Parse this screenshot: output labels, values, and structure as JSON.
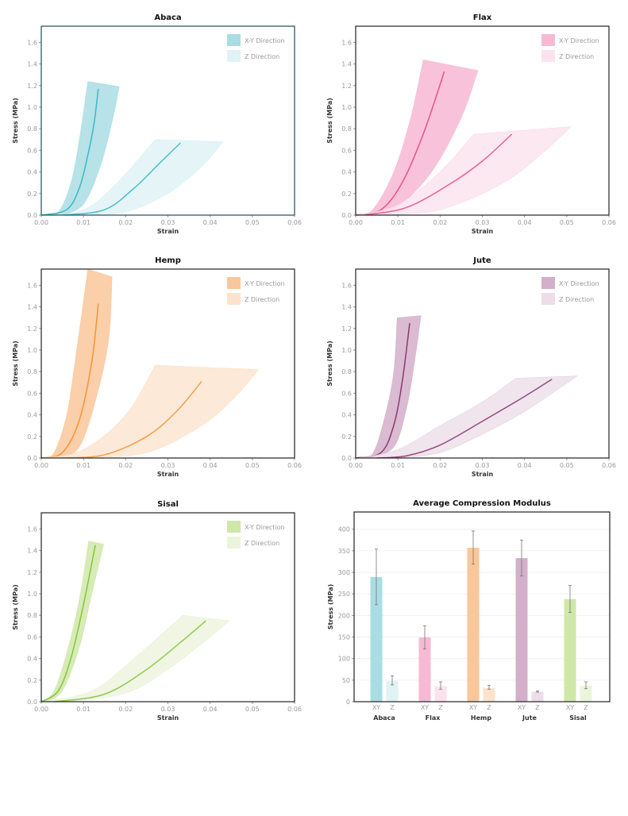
{
  "chart_data": [
    {
      "type": "area",
      "title": "Abaca",
      "xlabel": "Strain",
      "ylabel": "Stress (MPa)",
      "xlim": [
        0,
        0.06
      ],
      "ylim": [
        0,
        1.75
      ],
      "xticks": [
        "0.00",
        "0.01",
        "0.02",
        "0.03",
        "0.04",
        "0.05",
        "0.06"
      ],
      "yticks": [
        "0.0",
        "0.2",
        "0.4",
        "0.6",
        "0.8",
        "1.0",
        "1.2",
        "1.4",
        "1.6"
      ],
      "legend": "top-right",
      "grid": false,
      "color": "#3bb8c8",
      "band_color": "#a9dde4",
      "z_color": "#dff2f5",
      "series": [
        {
          "name": "X-Y Direction",
          "mean": [
            [
              0,
              0
            ],
            [
              0.006,
              0.05
            ],
            [
              0.009,
              0.25
            ],
            [
              0.011,
              0.55
            ],
            [
              0.0125,
              0.85
            ],
            [
              0.0135,
              1.17
            ]
          ],
          "band_left": [
            [
              0,
              0
            ],
            [
              0.004,
              0.03
            ],
            [
              0.007,
              0.3
            ],
            [
              0.009,
              0.7
            ],
            [
              0.011,
              1.24
            ]
          ],
          "band_right": [
            [
              0.005,
              0
            ],
            [
              0.01,
              0.1
            ],
            [
              0.014,
              0.45
            ],
            [
              0.017,
              0.9
            ],
            [
              0.0185,
              1.19
            ]
          ]
        },
        {
          "name": "Z Direction",
          "mean": [
            [
              0.005,
              0
            ],
            [
              0.015,
              0.05
            ],
            [
              0.022,
              0.25
            ],
            [
              0.028,
              0.48
            ],
            [
              0.033,
              0.67
            ]
          ],
          "band_left": [
            [
              0,
              0
            ],
            [
              0.01,
              0.05
            ],
            [
              0.018,
              0.3
            ],
            [
              0.027,
              0.7
            ]
          ],
          "band_right": [
            [
              0.01,
              0
            ],
            [
              0.02,
              0.03
            ],
            [
              0.03,
              0.2
            ],
            [
              0.038,
              0.45
            ],
            [
              0.043,
              0.68
            ]
          ]
        }
      ]
    },
    {
      "type": "area",
      "title": "Flax",
      "xlabel": "Strain",
      "ylabel": "Stress (MPa)",
      "xlim": [
        0,
        0.06
      ],
      "ylim": [
        0,
        1.75
      ],
      "xticks": [
        "0.00",
        "0.01",
        "0.02",
        "0.03",
        "0.04",
        "0.05",
        "0.06"
      ],
      "yticks": [
        "0.0",
        "0.2",
        "0.4",
        "0.6",
        "0.8",
        "1.0",
        "1.2",
        "1.4",
        "1.6"
      ],
      "legend": "top-right",
      "grid": false,
      "color": "#e8508c",
      "band_color": "#f7b9d3",
      "z_color": "#fbe2ee",
      "series": [
        {
          "name": "X-Y Direction",
          "mean": [
            [
              0,
              0
            ],
            [
              0.006,
              0.05
            ],
            [
              0.011,
              0.3
            ],
            [
              0.016,
              0.75
            ],
            [
              0.021,
              1.33
            ]
          ],
          "band_left": [
            [
              0,
              0
            ],
            [
              0.004,
              0.05
            ],
            [
              0.009,
              0.4
            ],
            [
              0.013,
              0.9
            ],
            [
              0.016,
              1.44
            ]
          ],
          "band_right": [
            [
              0.003,
              0
            ],
            [
              0.01,
              0.08
            ],
            [
              0.018,
              0.4
            ],
            [
              0.025,
              0.9
            ],
            [
              0.029,
              1.34
            ]
          ]
        },
        {
          "name": "Z Direction",
          "mean": [
            [
              0.002,
              0
            ],
            [
              0.012,
              0.07
            ],
            [
              0.022,
              0.28
            ],
            [
              0.03,
              0.5
            ],
            [
              0.037,
              0.75
            ]
          ],
          "band_left": [
            [
              0,
              0
            ],
            [
              0.01,
              0.1
            ],
            [
              0.02,
              0.4
            ],
            [
              0.028,
              0.75
            ]
          ],
          "band_right": [
            [
              0.005,
              0
            ],
            [
              0.02,
              0.05
            ],
            [
              0.035,
              0.3
            ],
            [
              0.045,
              0.6
            ],
            [
              0.051,
              0.82
            ]
          ]
        }
      ]
    },
    {
      "type": "area",
      "title": "Hemp",
      "xlabel": "Strain",
      "ylabel": "Stress (MPa)",
      "xlim": [
        0,
        0.06
      ],
      "ylim": [
        0,
        1.75
      ],
      "xticks": [
        "0.00",
        "0.01",
        "0.02",
        "0.03",
        "0.04",
        "0.05",
        "0.06"
      ],
      "yticks": [
        "0.0",
        "0.2",
        "0.4",
        "0.6",
        "0.8",
        "1.0",
        "1.2",
        "1.4",
        "1.6"
      ],
      "legend": "top-right",
      "grid": false,
      "color": "#f5943a",
      "band_color": "#f9c79a",
      "z_color": "#fde3cd",
      "series": [
        {
          "name": "X-Y Direction",
          "mean": [
            [
              0,
              0
            ],
            [
              0.005,
              0.05
            ],
            [
              0.009,
              0.35
            ],
            [
              0.012,
              0.9
            ],
            [
              0.0135,
              1.43
            ]
          ],
          "band_left": [
            [
              0,
              0
            ],
            [
              0.003,
              0.05
            ],
            [
              0.006,
              0.4
            ],
            [
              0.008,
              0.9
            ],
            [
              0.011,
              1.75
            ]
          ],
          "band_right": [
            [
              0.004,
              0
            ],
            [
              0.009,
              0.1
            ],
            [
              0.013,
              0.55
            ],
            [
              0.016,
              1.1
            ],
            [
              0.0168,
              1.68
            ]
          ]
        },
        {
          "name": "Z Direction",
          "mean": [
            [
              0.005,
              0
            ],
            [
              0.015,
              0.03
            ],
            [
              0.025,
              0.2
            ],
            [
              0.032,
              0.43
            ],
            [
              0.038,
              0.71
            ]
          ],
          "band_left": [
            [
              0,
              0
            ],
            [
              0.01,
              0.08
            ],
            [
              0.02,
              0.4
            ],
            [
              0.027,
              0.86
            ]
          ],
          "band_right": [
            [
              0.01,
              0
            ],
            [
              0.025,
              0.05
            ],
            [
              0.038,
              0.3
            ],
            [
              0.046,
              0.57
            ],
            [
              0.0515,
              0.82
            ]
          ]
        }
      ]
    },
    {
      "type": "area",
      "title": "Jute",
      "xlabel": "Strain",
      "ylabel": "Stress (MPa)",
      "xlim": [
        0,
        0.06
      ],
      "ylim": [
        0,
        1.75
      ],
      "xticks": [
        "0.00",
        "0.01",
        "0.02",
        "0.03",
        "0.04",
        "0.05",
        "0.06"
      ],
      "yticks": [
        "0.0",
        "0.2",
        "0.4",
        "0.6",
        "0.8",
        "1.0",
        "1.2",
        "1.4",
        "1.6"
      ],
      "legend": "top-right",
      "grid": false,
      "color": "#8b3a72",
      "band_color": "#d3afc9",
      "z_color": "#ecdde8",
      "series": [
        {
          "name": "X-Y Direction",
          "mean": [
            [
              0,
              0
            ],
            [
              0.006,
              0.05
            ],
            [
              0.009,
              0.3
            ],
            [
              0.011,
              0.7
            ],
            [
              0.0128,
              1.25
            ]
          ],
          "band_left": [
            [
              0,
              0
            ],
            [
              0.004,
              0.04
            ],
            [
              0.007,
              0.4
            ],
            [
              0.009,
              0.8
            ],
            [
              0.0098,
              1.3
            ]
          ],
          "band_right": [
            [
              0.003,
              0
            ],
            [
              0.009,
              0.1
            ],
            [
              0.012,
              0.45
            ],
            [
              0.014,
              0.9
            ],
            [
              0.0155,
              1.32
            ]
          ]
        },
        {
          "name": "Z Direction",
          "mean": [
            [
              0.005,
              0
            ],
            [
              0.012,
              0.02
            ],
            [
              0.02,
              0.12
            ],
            [
              0.03,
              0.34
            ],
            [
              0.04,
              0.57
            ],
            [
              0.0465,
              0.73
            ]
          ],
          "band_left": [
            [
              0,
              0
            ],
            [
              0.01,
              0.08
            ],
            [
              0.02,
              0.3
            ],
            [
              0.03,
              0.52
            ],
            [
              0.038,
              0.74
            ]
          ],
          "band_right": [
            [
              0.01,
              0
            ],
            [
              0.02,
              0.05
            ],
            [
              0.03,
              0.22
            ],
            [
              0.04,
              0.43
            ],
            [
              0.0525,
              0.76
            ]
          ]
        }
      ]
    },
    {
      "type": "area",
      "title": "Sisal",
      "xlabel": "Strain",
      "ylabel": "Stress (MPa)",
      "xlim": [
        0,
        0.06
      ],
      "ylim": [
        0,
        1.75
      ],
      "xticks": [
        "0.00",
        "0.01",
        "0.02",
        "0.03",
        "0.04",
        "0.05",
        "0.06"
      ],
      "yticks": [
        "0.0",
        "0.2",
        "0.4",
        "0.6",
        "0.8",
        "1.0",
        "1.2",
        "1.4",
        "1.6"
      ],
      "legend": "top-right",
      "grid": false,
      "color": "#86c53c",
      "band_color": "#cfe7a8",
      "z_color": "#ecf4dc",
      "series": [
        {
          "name": "X-Y Direction",
          "mean": [
            [
              0,
              0
            ],
            [
              0.004,
              0.1
            ],
            [
              0.007,
              0.4
            ],
            [
              0.01,
              0.9
            ],
            [
              0.0128,
              1.45
            ]
          ],
          "band_left": [
            [
              0,
              0
            ],
            [
              0.003,
              0.1
            ],
            [
              0.006,
              0.45
            ],
            [
              0.009,
              0.95
            ],
            [
              0.0112,
              1.49
            ]
          ],
          "band_right": [
            [
              0.001,
              0
            ],
            [
              0.005,
              0.1
            ],
            [
              0.009,
              0.5
            ],
            [
              0.012,
              1.0
            ],
            [
              0.0148,
              1.46
            ]
          ]
        },
        {
          "name": "Z Direction",
          "mean": [
            [
              0.003,
              0
            ],
            [
              0.015,
              0.07
            ],
            [
              0.025,
              0.3
            ],
            [
              0.033,
              0.55
            ],
            [
              0.039,
              0.75
            ]
          ],
          "band_left": [
            [
              0,
              0
            ],
            [
              0.012,
              0.1
            ],
            [
              0.022,
              0.4
            ],
            [
              0.0335,
              0.8
            ]
          ],
          "band_right": [
            [
              0.006,
              0
            ],
            [
              0.02,
              0.08
            ],
            [
              0.03,
              0.3
            ],
            [
              0.04,
              0.6
            ],
            [
              0.0445,
              0.75
            ]
          ]
        }
      ]
    },
    {
      "type": "bar",
      "title": "Average Compression Modulus",
      "xlabel": "",
      "ylabel": "Stress (MPa)",
      "ylim": [
        0,
        440
      ],
      "yticks": [
        "0",
        "50",
        "100",
        "150",
        "200",
        "250",
        "300",
        "350",
        "400"
      ],
      "grid": true,
      "categories": [
        "Abaca",
        "Flax",
        "Hemp",
        "Jute",
        "Sisal"
      ],
      "sub_labels": [
        "XY",
        "Z"
      ],
      "colors": [
        "#a9dde4",
        "#f7b9d3",
        "#f9c79a",
        "#d3afc9",
        "#cfe7a8"
      ],
      "z_colors": [
        "#dff2f5",
        "#fbe2ee",
        "#fde3cd",
        "#ecdde8",
        "#ecf4dc"
      ],
      "xy_values": [
        289,
        149,
        357,
        333,
        238
      ],
      "xy_err": [
        [
          225,
          354
        ],
        [
          122,
          176
        ],
        [
          319,
          396
        ],
        [
          292,
          375
        ],
        [
          207,
          270
        ]
      ],
      "z_values": [
        48,
        36,
        32,
        23,
        37
      ],
      "z_err": [
        [
          39,
          60
        ],
        [
          29,
          46
        ],
        [
          29,
          38
        ],
        [
          22,
          25
        ],
        [
          30,
          46
        ]
      ]
    }
  ]
}
